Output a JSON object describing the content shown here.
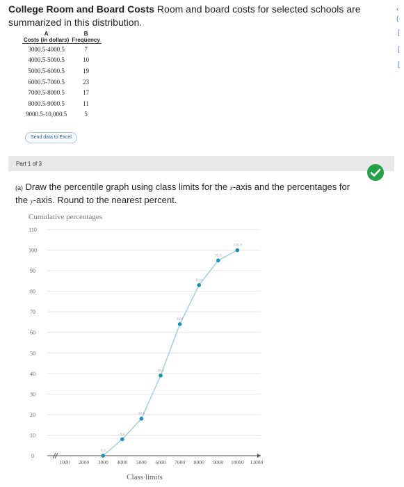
{
  "problem": {
    "title": "College Room and Board Costs",
    "text": " Room and board costs for selected schools are summarized in this distribution."
  },
  "table": {
    "col_a_letter": "A",
    "col_b_letter": "B",
    "col_a_header": "Costs (in dollars)",
    "col_b_header": "Frequency",
    "rows": [
      {
        "range": "3000.5-4000.5",
        "freq": "7"
      },
      {
        "range": "4000.5-5000.5",
        "freq": "10"
      },
      {
        "range": "5000.5-6000.5",
        "freq": "19"
      },
      {
        "range": "6000.5-7000.5",
        "freq": "23"
      },
      {
        "range": "7000.5-8000.5",
        "freq": "17"
      },
      {
        "range": "8000.5-9000.5",
        "freq": "11"
      },
      {
        "range": "9000.5-10,000.5",
        "freq": "5"
      }
    ]
  },
  "send_button_label": "Send data to Excel",
  "part_label": "Part 1 of 3",
  "status_colors": {
    "correct": "#24a148",
    "line": "#9ed0e6",
    "point": "#1a8fb5"
  },
  "question": {
    "tag": "(a)",
    "text_1": " Draw the percentile graph using class limits for the ",
    "x_var": "x",
    "text_2": "-axis and the percentages for the ",
    "y_var": "y",
    "text_3": "-axis. Round to the nearest percent."
  },
  "chart_data": {
    "type": "line",
    "ylabel": "Cumulative percentages",
    "xlabel": "Class limits",
    "ylim": [
      0,
      110
    ],
    "yticks": [
      0,
      10,
      20,
      30,
      40,
      50,
      60,
      70,
      80,
      90,
      100,
      110
    ],
    "xticks": [
      1000,
      2000,
      3000,
      4000,
      5000,
      6000,
      7000,
      8000,
      9000,
      10000,
      11000
    ],
    "xlim": [
      0,
      11000
    ],
    "axis_break": true,
    "grid": true,
    "series": [
      {
        "x": [
          3000,
          4000,
          5000,
          6000,
          7000,
          8000,
          9000,
          10000
        ],
        "y": [
          0.0,
          8.0,
          18.0,
          39.0,
          64.0,
          83.0,
          95.0,
          100.0
        ],
        "labels": [
          "0.0",
          "8.0",
          "18.0",
          "39.0",
          "64.0",
          "83.0",
          "95.0",
          "100.0"
        ]
      }
    ]
  }
}
